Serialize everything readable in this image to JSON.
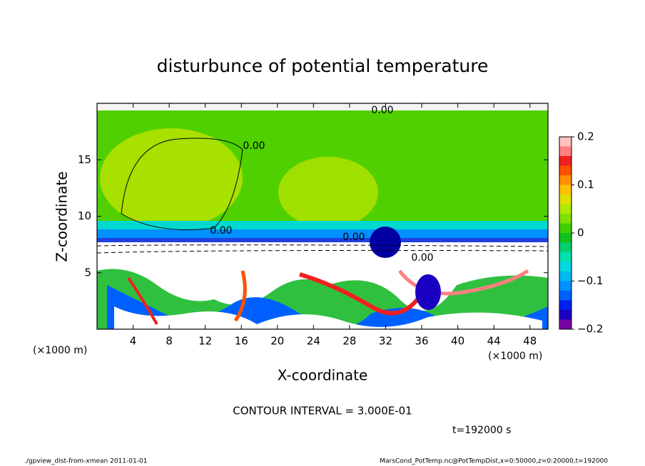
{
  "chart_data": {
    "type": "contour",
    "title": "disturbunce of potential temperature",
    "x_label": "X-coordinate",
    "y_label": "Z-coordinate",
    "x_unit": "(×1000 m)",
    "y_unit": "(×1000 m)",
    "xlim": [
      0,
      50
    ],
    "xticks": [
      4,
      8,
      12,
      16,
      20,
      24,
      28,
      32,
      36,
      40,
      44,
      48
    ],
    "ylim": [
      0,
      20
    ],
    "yticks": [
      5,
      10,
      15
    ],
    "contour_labels": [
      "0.00",
      "0.00",
      "0.00",
      "0.00",
      "0.00"
    ],
    "contour_interval": "CONTOUR INTERVAL = 3.000E-01",
    "time_label": "t=192000 s",
    "footer_left": "./gpview_dist-from-xmean  2011-01-01",
    "footer_right": "MarsCond_PotTemp.nc@PotTempDist,x=0:50000,z=0:20000,t=192000",
    "colorbar": {
      "lim": [
        -0.2,
        0.2
      ],
      "levels": [
        -0.2,
        -0.18,
        -0.16,
        -0.14,
        -0.12,
        -0.1,
        -0.08,
        -0.06,
        -0.04,
        -0.02,
        0,
        0.02,
        0.04,
        0.06,
        0.08,
        0.1,
        0.12,
        0.14,
        0.16,
        0.18,
        0.2
      ],
      "colors": [
        "#7a00a8",
        "#1a00c0",
        "#0020f0",
        "#0060ff",
        "#0090ff",
        "#00b8f0",
        "#00d8e0",
        "#00e0b0",
        "#00d070",
        "#10c020",
        "#40d000",
        "#80e000",
        "#b0e800",
        "#e0e000",
        "#ffc000",
        "#ff9000",
        "#ff5000",
        "#f02020",
        "#ff8080",
        "#ffc0c0"
      ],
      "ticks": [
        {
          "value": 0.2,
          "label": "0.2"
        },
        {
          "value": 0.1,
          "label": "0.1"
        },
        {
          "value": 0,
          "label": "0"
        },
        {
          "value": -0.1,
          "label": "−0.1"
        },
        {
          "value": -0.2,
          "label": "−0.2"
        }
      ]
    }
  }
}
